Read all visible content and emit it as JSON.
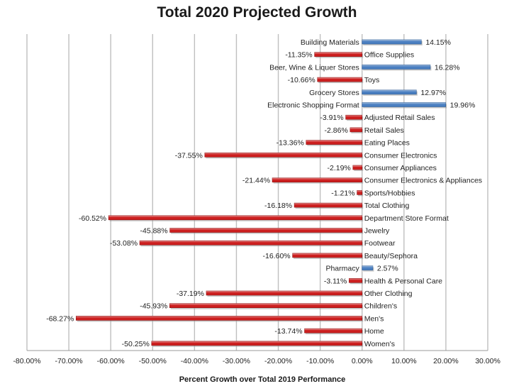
{
  "chart_data": {
    "type": "bar",
    "orientation": "horizontal",
    "title": "Total 2020 Projected Growth",
    "xlabel": "Percent Growth over Total 2019 Performance",
    "ylabel": "",
    "xlim": [
      -80,
      30
    ],
    "x_ticks": [
      -80,
      -70,
      -60,
      -50,
      -40,
      -30,
      -20,
      -10,
      0,
      10,
      20,
      30
    ],
    "x_tick_labels": [
      "-80.00%",
      "-70.00%",
      "-60.00%",
      "-50.00%",
      "-40.00%",
      "-30.00%",
      "-20.00%",
      "-10.00%",
      "0.00%",
      "10.00%",
      "20.00%",
      "30.00%"
    ],
    "grid": "vertical",
    "colors": {
      "positive": "#4a7fc1",
      "negative": "#cc1f1f",
      "grid": "#bfbfbf"
    },
    "categories": [
      "Building Materials",
      "Office Supplies",
      "Beer, Wine & Liquer Stores",
      "Toys",
      "Grocery Stores",
      "Electronic Shopping Format",
      "Adjusted Retail Sales",
      "Retail Sales",
      "Eating Places",
      "Consumer Electronics",
      "Consumer Appliances",
      "Consumer Electronics & Appliances",
      "Sports/Hobbies",
      "Total Clothing",
      "Department Store Format",
      "Jewelry",
      "Footwear",
      "Beauty/Sephora",
      "Pharmacy",
      "Health & Personal Care",
      "Other Clothing",
      "Children's",
      "Men's",
      "Home",
      "Women's"
    ],
    "values": [
      14.15,
      -11.35,
      16.28,
      -10.66,
      12.97,
      19.96,
      -3.91,
      -2.86,
      -13.36,
      -37.55,
      -2.19,
      -21.44,
      -1.21,
      -16.18,
      -60.52,
      -45.88,
      -53.08,
      -16.6,
      2.57,
      -3.11,
      -37.19,
      -45.93,
      -68.27,
      -13.74,
      -50.25
    ],
    "value_labels": [
      "14.15%",
      "-11.35%",
      "16.28%",
      "-10.66%",
      "12.97%",
      "19.96%",
      "-3.91%",
      "-2.86%",
      "-13.36%",
      "-37.55%",
      "-2.19%",
      "-21.44%",
      "-1.21%",
      "-16.18%",
      "-60.52%",
      "-45.88%",
      "-53.08%",
      "-16.60%",
      "2.57%",
      "-3.11%",
      "-37.19%",
      "-45.93%",
      "-68.27%",
      "-13.74%",
      "-50.25%"
    ]
  }
}
